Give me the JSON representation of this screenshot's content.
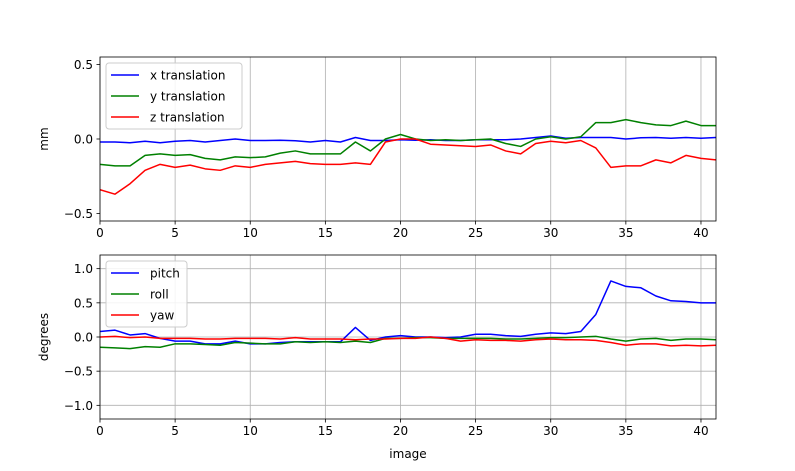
{
  "chart_data": [
    {
      "type": "line",
      "title": "",
      "xlabel": "",
      "ylabel": "mm",
      "xlim": [
        0,
        41
      ],
      "ylim": [
        -0.55,
        0.55
      ],
      "xticks": [
        0,
        5,
        10,
        15,
        20,
        25,
        30,
        35,
        40
      ],
      "yticks": [
        -0.5,
        0.0,
        0.5
      ],
      "xtick_labels": [
        "0",
        "5",
        "10",
        "15",
        "20",
        "25",
        "30",
        "35",
        "40"
      ],
      "ytick_labels": [
        "−0.5",
        "0.0",
        "0.5"
      ],
      "grid": "x-only",
      "legend_placement": "upper-left",
      "x": [
        0,
        1,
        2,
        3,
        4,
        5,
        6,
        7,
        8,
        9,
        10,
        11,
        12,
        13,
        14,
        15,
        16,
        17,
        18,
        19,
        20,
        21,
        22,
        23,
        24,
        25,
        26,
        27,
        28,
        29,
        30,
        31,
        32,
        33,
        34,
        35,
        36,
        37,
        38,
        39,
        40,
        41
      ],
      "series": [
        {
          "name": "x translation",
          "color": "#0000ff",
          "values": [
            -0.02,
            -0.02,
            -0.025,
            -0.015,
            -0.025,
            -0.015,
            -0.01,
            -0.02,
            -0.01,
            0.0,
            -0.01,
            -0.01,
            -0.008,
            -0.012,
            -0.02,
            -0.01,
            -0.02,
            0.01,
            -0.01,
            -0.01,
            -0.005,
            -0.008,
            -0.005,
            -0.01,
            -0.01,
            -0.005,
            -0.005,
            -0.005,
            0.0,
            0.01,
            0.02,
            0.005,
            0.01,
            0.01,
            0.01,
            0.0,
            0.008,
            0.01,
            0.005,
            0.01,
            0.005,
            0.01
          ]
        },
        {
          "name": "y translation",
          "color": "#008000",
          "values": [
            -0.17,
            -0.18,
            -0.18,
            -0.11,
            -0.1,
            -0.11,
            -0.105,
            -0.13,
            -0.14,
            -0.12,
            -0.125,
            -0.12,
            -0.095,
            -0.08,
            -0.1,
            -0.1,
            -0.1,
            -0.02,
            -0.08,
            0.0,
            0.03,
            0.0,
            -0.01,
            -0.005,
            -0.01,
            -0.005,
            0.0,
            -0.03,
            -0.05,
            0.0,
            0.015,
            0.0,
            0.015,
            0.11,
            0.11,
            0.13,
            0.11,
            0.095,
            0.09,
            0.12,
            0.09,
            0.09
          ]
        },
        {
          "name": "z translation",
          "color": "#ff0000",
          "values": [
            -0.34,
            -0.37,
            -0.3,
            -0.21,
            -0.17,
            -0.19,
            -0.175,
            -0.2,
            -0.21,
            -0.18,
            -0.19,
            -0.17,
            -0.16,
            -0.15,
            -0.165,
            -0.17,
            -0.17,
            -0.16,
            -0.17,
            -0.02,
            0.0,
            0.0,
            -0.035,
            -0.04,
            -0.045,
            -0.05,
            -0.04,
            -0.08,
            -0.1,
            -0.03,
            -0.015,
            -0.025,
            -0.01,
            -0.06,
            -0.19,
            -0.18,
            -0.18,
            -0.14,
            -0.16,
            -0.11,
            -0.13,
            -0.14
          ]
        }
      ]
    },
    {
      "type": "line",
      "title": "",
      "xlabel": "image",
      "ylabel": "degrees",
      "xlim": [
        0,
        41
      ],
      "ylim": [
        -1.2,
        1.2
      ],
      "xticks": [
        0,
        5,
        10,
        15,
        20,
        25,
        30,
        35,
        40
      ],
      "yticks": [
        -1.0,
        -0.5,
        0.0,
        0.5,
        1.0
      ],
      "xtick_labels": [
        "0",
        "5",
        "10",
        "15",
        "20",
        "25",
        "30",
        "35",
        "40"
      ],
      "ytick_labels": [
        "−1.0",
        "−0.5",
        "0.0",
        "0.5",
        "1.0"
      ],
      "grid": "both",
      "legend_placement": "upper-left",
      "x": [
        0,
        1,
        2,
        3,
        4,
        5,
        6,
        7,
        8,
        9,
        10,
        11,
        12,
        13,
        14,
        15,
        16,
        17,
        18,
        19,
        20,
        21,
        22,
        23,
        24,
        25,
        26,
        27,
        28,
        29,
        30,
        31,
        32,
        33,
        34,
        35,
        36,
        37,
        38,
        39,
        40,
        41
      ],
      "series": [
        {
          "name": "pitch",
          "color": "#0000ff",
          "values": [
            0.08,
            0.1,
            0.03,
            0.05,
            -0.02,
            -0.06,
            -0.06,
            -0.1,
            -0.1,
            -0.06,
            -0.1,
            -0.1,
            -0.08,
            -0.07,
            -0.07,
            -0.07,
            -0.07,
            0.14,
            -0.05,
            0.0,
            0.02,
            0.0,
            0.0,
            -0.01,
            0.0,
            0.04,
            0.04,
            0.02,
            0.01,
            0.04,
            0.06,
            0.05,
            0.08,
            0.33,
            0.82,
            0.74,
            0.72,
            0.6,
            0.53,
            0.52,
            0.5,
            0.5
          ]
        },
        {
          "name": "roll",
          "color": "#008000",
          "values": [
            -0.15,
            -0.16,
            -0.17,
            -0.14,
            -0.15,
            -0.1,
            -0.1,
            -0.11,
            -0.12,
            -0.08,
            -0.09,
            -0.1,
            -0.1,
            -0.07,
            -0.08,
            -0.07,
            -0.08,
            -0.06,
            -0.08,
            -0.02,
            -0.02,
            -0.01,
            -0.01,
            -0.02,
            -0.02,
            -0.02,
            -0.02,
            -0.03,
            -0.03,
            -0.02,
            -0.01,
            -0.01,
            0.0,
            0.01,
            -0.03,
            -0.06,
            -0.03,
            -0.02,
            -0.05,
            -0.03,
            -0.03,
            -0.04
          ]
        },
        {
          "name": "yaw",
          "color": "#ff0000",
          "values": [
            0.0,
            0.01,
            -0.01,
            0.0,
            -0.02,
            -0.02,
            -0.02,
            -0.03,
            -0.03,
            -0.02,
            -0.02,
            -0.02,
            -0.03,
            -0.01,
            -0.03,
            -0.03,
            -0.03,
            -0.04,
            -0.03,
            -0.03,
            -0.02,
            -0.02,
            0.0,
            -0.02,
            -0.06,
            -0.04,
            -0.05,
            -0.05,
            -0.06,
            -0.04,
            -0.03,
            -0.04,
            -0.04,
            -0.05,
            -0.08,
            -0.12,
            -0.1,
            -0.1,
            -0.13,
            -0.12,
            -0.13,
            -0.12
          ]
        }
      ]
    }
  ]
}
